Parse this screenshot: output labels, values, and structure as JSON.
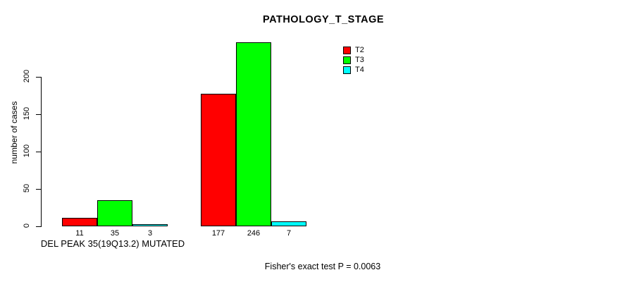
{
  "chart_data": {
    "type": "bar",
    "title": "PATHOLOGY_T_STAGE",
    "ylabel": "number of cases",
    "xlabel": "",
    "yticks": [
      0,
      50,
      100,
      150,
      200
    ],
    "ylim": [
      0,
      248
    ],
    "grid": false,
    "legend_position": "top-right",
    "categories": [
      "DEL PEAK 35(19Q13.2) MUTATED",
      ""
    ],
    "series": [
      {
        "name": "T2",
        "color": "#FF0000",
        "values": [
          11,
          177
        ]
      },
      {
        "name": "T3",
        "color": "#00FF00",
        "values": [
          35,
          246
        ]
      },
      {
        "name": "T4",
        "color": "#00FFFF",
        "values": [
          3,
          7
        ]
      }
    ],
    "bar_value_labels": [
      [
        11,
        35,
        3
      ],
      [
        177,
        246,
        7
      ]
    ],
    "annotation": "Fisher's exact test P = 0.0063"
  },
  "colors": {
    "background": "#FFFFFF",
    "axis": "#000000",
    "text": "#000000"
  }
}
